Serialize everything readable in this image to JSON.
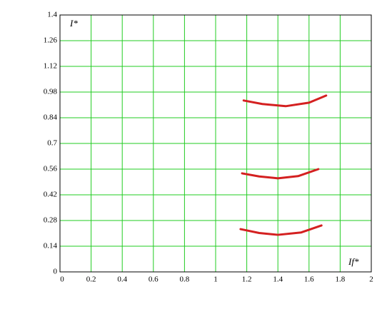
{
  "chart_data": {
    "type": "line",
    "x_label": "If*",
    "y_label": "I*",
    "xlim": [
      0,
      2
    ],
    "xticks": [
      0,
      0.2,
      0.4,
      0.6,
      0.8,
      1,
      1.2,
      1.4,
      1.6,
      1.8,
      2
    ],
    "ylim": [
      0,
      1.4
    ],
    "yticks": [
      0,
      0.14,
      0.28,
      0.42,
      0.56,
      0.7,
      0.84,
      0.98,
      1.12,
      1.26,
      1.4
    ],
    "grid": true,
    "grid_color": "#22cc22",
    "series": [
      {
        "color": "#d42020",
        "x": [
          1.18,
          1.3,
          1.45,
          1.6,
          1.71
        ],
        "values": [
          0.934,
          0.915,
          0.903,
          0.922,
          0.961
        ]
      },
      {
        "color": "#d42020",
        "x": [
          1.17,
          1.28,
          1.4,
          1.53,
          1.66
        ],
        "values": [
          0.537,
          0.52,
          0.51,
          0.522,
          0.56
        ]
      },
      {
        "color": "#d42020",
        "x": [
          1.16,
          1.28,
          1.4,
          1.55,
          1.68
        ],
        "values": [
          0.233,
          0.212,
          0.202,
          0.215,
          0.253
        ]
      }
    ]
  }
}
